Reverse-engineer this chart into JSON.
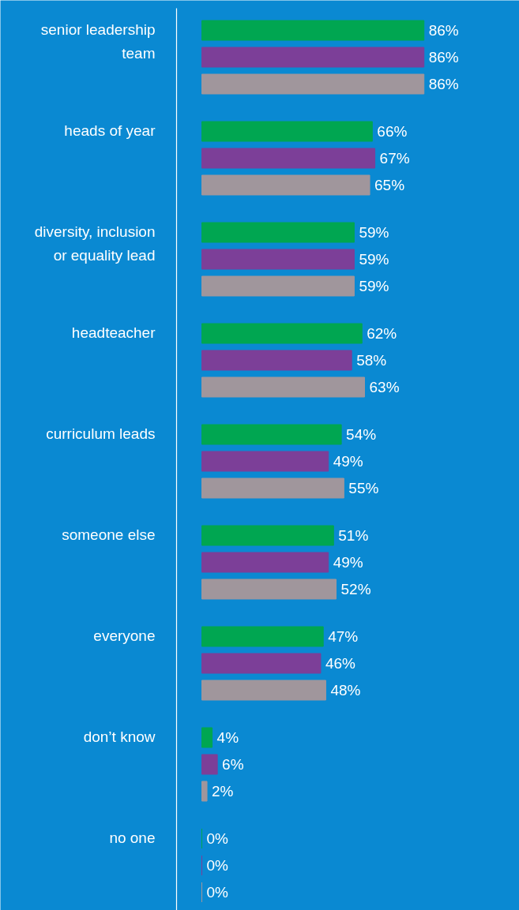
{
  "chart_data": {
    "type": "bar",
    "orientation": "horizontal",
    "categories": [
      "senior leadership team",
      "heads of year",
      "diversity, inclusion or equality lead",
      "headteacher",
      "curriculum leads",
      "someone else",
      "everyone",
      "don’t know",
      "no one"
    ],
    "series": [
      {
        "color": "#00a651",
        "values": [
          86,
          66,
          59,
          62,
          54,
          51,
          47,
          4,
          0
        ],
        "value_labels": [
          "86%",
          "66%",
          "59%",
          "62%",
          "54%",
          "51%",
          "47%",
          "4%",
          "0%"
        ]
      },
      {
        "color": "#7c3f98",
        "values": [
          86,
          67,
          59,
          58,
          49,
          49,
          46,
          6,
          0
        ],
        "value_labels": [
          "86%",
          "67%",
          "59%",
          "58%",
          "49%",
          "49%",
          "46%",
          "6%",
          "0%"
        ]
      },
      {
        "color": "#a0969c",
        "values": [
          86,
          65,
          59,
          63,
          55,
          52,
          48,
          2,
          0
        ],
        "value_labels": [
          "86%",
          "65%",
          "59%",
          "63%",
          "55%",
          "52%",
          "48%",
          "2%",
          "0%"
        ]
      }
    ],
    "grid": false,
    "tick_labels": false
  }
}
